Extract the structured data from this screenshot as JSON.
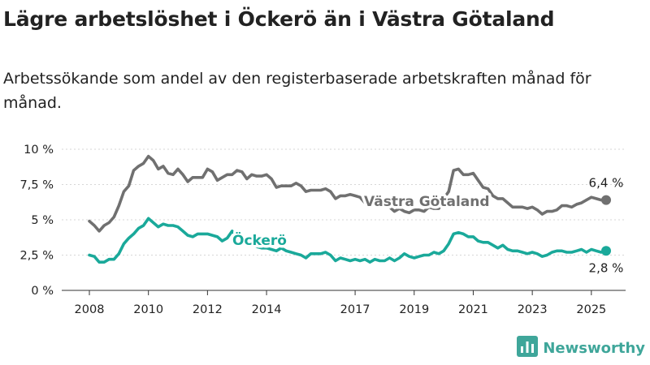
{
  "title": "Lägre arbetslöshet i Öckerö än i Västra Götaland",
  "subtitle": "Arbetssökande som andel av den registerbaserade arbetskraften månad för månad.",
  "brand": {
    "name": "Newsworthy",
    "color": "#3fa69a",
    "icon": "bar-chart-icon"
  },
  "chart_data": {
    "type": "line",
    "ylim": [
      0,
      10
    ],
    "y_ticks": [
      {
        "value": 10,
        "label": "10 %"
      },
      {
        "value": 7.5,
        "label": "7,5 %"
      },
      {
        "value": 5,
        "label": "5 %"
      },
      {
        "value": 2.5,
        "label": "2,5 %"
      },
      {
        "value": 0,
        "label": "0 %"
      }
    ],
    "xlim": [
      2007.6,
      2026.0
    ],
    "x_ticks": [
      "2008",
      "2010",
      "2012",
      "2014",
      "2017",
      "2019",
      "2021",
      "2023",
      "2025"
    ],
    "grid": "horizontal",
    "series": [
      {
        "name": "Västra Götaland",
        "color": "#707070",
        "end_label": "6,4 %",
        "points": [
          [
            "2008-01",
            4.9
          ],
          [
            "2008-03",
            4.6
          ],
          [
            "2008-05",
            4.2
          ],
          [
            "2008-07",
            4.6
          ],
          [
            "2008-09",
            4.8
          ],
          [
            "2008-11",
            5.2
          ],
          [
            "2009-01",
            6.0
          ],
          [
            "2009-03",
            7.0
          ],
          [
            "2009-05",
            7.4
          ],
          [
            "2009-07",
            8.5
          ],
          [
            "2009-09",
            8.8
          ],
          [
            "2009-11",
            9.0
          ],
          [
            "2010-01",
            9.5
          ],
          [
            "2010-03",
            9.2
          ],
          [
            "2010-05",
            8.6
          ],
          [
            "2010-07",
            8.8
          ],
          [
            "2010-09",
            8.3
          ],
          [
            "2010-11",
            8.2
          ],
          [
            "2011-01",
            8.6
          ],
          [
            "2011-03",
            8.2
          ],
          [
            "2011-05",
            7.7
          ],
          [
            "2011-07",
            8.0
          ],
          [
            "2011-09",
            8.0
          ],
          [
            "2011-11",
            8.0
          ],
          [
            "2012-01",
            8.6
          ],
          [
            "2012-03",
            8.4
          ],
          [
            "2012-05",
            7.8
          ],
          [
            "2012-07",
            8.0
          ],
          [
            "2012-09",
            8.2
          ],
          [
            "2012-11",
            8.2
          ],
          [
            "2013-01",
            8.5
          ],
          [
            "2013-03",
            8.4
          ],
          [
            "2013-05",
            7.9
          ],
          [
            "2013-07",
            8.2
          ],
          [
            "2013-09",
            8.1
          ],
          [
            "2013-11",
            8.1
          ],
          [
            "2014-01",
            8.2
          ],
          [
            "2014-03",
            7.9
          ],
          [
            "2014-05",
            7.3
          ],
          [
            "2014-07",
            7.4
          ],
          [
            "2014-09",
            7.4
          ],
          [
            "2014-11",
            7.4
          ],
          [
            "2015-01",
            7.6
          ],
          [
            "2015-03",
            7.4
          ],
          [
            "2015-05",
            7.0
          ],
          [
            "2015-07",
            7.1
          ],
          [
            "2015-09",
            7.1
          ],
          [
            "2015-11",
            7.1
          ],
          [
            "2016-01",
            7.2
          ],
          [
            "2016-03",
            7.0
          ],
          [
            "2016-05",
            6.5
          ],
          [
            "2016-07",
            6.7
          ],
          [
            "2016-09",
            6.7
          ],
          [
            "2016-11",
            6.8
          ],
          [
            "2017-01",
            6.7
          ],
          [
            "2017-03",
            6.6
          ],
          [
            "2017-05",
            6.2
          ],
          [
            "2017-07",
            6.3
          ],
          [
            "2017-09",
            6.0
          ],
          [
            "2017-11",
            5.9
          ],
          [
            "2018-01",
            6.0
          ],
          [
            "2018-03",
            5.9
          ],
          [
            "2018-05",
            5.6
          ],
          [
            "2018-07",
            5.8
          ],
          [
            "2018-09",
            5.6
          ],
          [
            "2018-11",
            5.5
          ],
          [
            "2019-01",
            5.7
          ],
          [
            "2019-03",
            5.7
          ],
          [
            "2019-05",
            5.6
          ],
          [
            "2019-07",
            5.9
          ],
          [
            "2019-09",
            5.8
          ],
          [
            "2019-11",
            5.8
          ],
          [
            "2020-01",
            6.5
          ],
          [
            "2020-03",
            7.0
          ],
          [
            "2020-05",
            8.5
          ],
          [
            "2020-07",
            8.6
          ],
          [
            "2020-09",
            8.2
          ],
          [
            "2020-11",
            8.2
          ],
          [
            "2021-01",
            8.3
          ],
          [
            "2021-03",
            7.8
          ],
          [
            "2021-05",
            7.3
          ],
          [
            "2021-07",
            7.2
          ],
          [
            "2021-09",
            6.7
          ],
          [
            "2021-11",
            6.5
          ],
          [
            "2022-01",
            6.5
          ],
          [
            "2022-03",
            6.2
          ],
          [
            "2022-05",
            5.9
          ],
          [
            "2022-07",
            5.9
          ],
          [
            "2022-09",
            5.9
          ],
          [
            "2022-11",
            5.8
          ],
          [
            "2023-01",
            5.9
          ],
          [
            "2023-03",
            5.7
          ],
          [
            "2023-05",
            5.4
          ],
          [
            "2023-07",
            5.6
          ],
          [
            "2023-09",
            5.6
          ],
          [
            "2023-11",
            5.7
          ],
          [
            "2024-01",
            6.0
          ],
          [
            "2024-03",
            6.0
          ],
          [
            "2024-05",
            5.9
          ],
          [
            "2024-07",
            6.1
          ],
          [
            "2024-09",
            6.2
          ],
          [
            "2024-11",
            6.4
          ],
          [
            "2025-01",
            6.6
          ],
          [
            "2025-03",
            6.5
          ],
          [
            "2025-05",
            6.4
          ],
          [
            "2025-07",
            6.4
          ]
        ]
      },
      {
        "name": "Öckerö",
        "color": "#1aa99a",
        "end_label": "2,8 %",
        "points": [
          [
            "2008-01",
            2.5
          ],
          [
            "2008-03",
            2.4
          ],
          [
            "2008-05",
            2.0
          ],
          [
            "2008-07",
            2.0
          ],
          [
            "2008-09",
            2.2
          ],
          [
            "2008-11",
            2.2
          ],
          [
            "2009-01",
            2.6
          ],
          [
            "2009-03",
            3.3
          ],
          [
            "2009-05",
            3.7
          ],
          [
            "2009-07",
            4.0
          ],
          [
            "2009-09",
            4.4
          ],
          [
            "2009-11",
            4.6
          ],
          [
            "2010-01",
            5.1
          ],
          [
            "2010-03",
            4.8
          ],
          [
            "2010-05",
            4.5
          ],
          [
            "2010-07",
            4.7
          ],
          [
            "2010-09",
            4.6
          ],
          [
            "2010-11",
            4.6
          ],
          [
            "2011-01",
            4.5
          ],
          [
            "2011-03",
            4.2
          ],
          [
            "2011-05",
            3.9
          ],
          [
            "2011-07",
            3.8
          ],
          [
            "2011-09",
            4.0
          ],
          [
            "2011-11",
            4.0
          ],
          [
            "2012-01",
            4.0
          ],
          [
            "2012-03",
            3.9
          ],
          [
            "2012-05",
            3.8
          ],
          [
            "2012-07",
            3.5
          ],
          [
            "2012-09",
            3.7
          ],
          [
            "2012-11",
            4.2
          ],
          [
            "2013-01",
            3.8
          ],
          [
            "2013-03",
            3.5
          ],
          [
            "2013-05",
            3.3
          ],
          [
            "2013-07",
            3.2
          ],
          [
            "2013-09",
            3.1
          ],
          [
            "2013-11",
            3.0
          ],
          [
            "2014-01",
            3.0
          ],
          [
            "2014-03",
            2.9
          ],
          [
            "2014-05",
            2.8
          ],
          [
            "2014-07",
            3.0
          ],
          [
            "2014-09",
            2.8
          ],
          [
            "2014-11",
            2.7
          ],
          [
            "2015-01",
            2.6
          ],
          [
            "2015-03",
            2.5
          ],
          [
            "2015-05",
            2.3
          ],
          [
            "2015-07",
            2.6
          ],
          [
            "2015-09",
            2.6
          ],
          [
            "2015-11",
            2.6
          ],
          [
            "2016-01",
            2.7
          ],
          [
            "2016-03",
            2.5
          ],
          [
            "2016-05",
            2.1
          ],
          [
            "2016-07",
            2.3
          ],
          [
            "2016-09",
            2.2
          ],
          [
            "2016-11",
            2.1
          ],
          [
            "2017-01",
            2.2
          ],
          [
            "2017-03",
            2.1
          ],
          [
            "2017-05",
            2.2
          ],
          [
            "2017-07",
            2.0
          ],
          [
            "2017-09",
            2.2
          ],
          [
            "2017-11",
            2.1
          ],
          [
            "2018-01",
            2.1
          ],
          [
            "2018-03",
            2.3
          ],
          [
            "2018-05",
            2.1
          ],
          [
            "2018-07",
            2.3
          ],
          [
            "2018-09",
            2.6
          ],
          [
            "2018-11",
            2.4
          ],
          [
            "2019-01",
            2.3
          ],
          [
            "2019-03",
            2.4
          ],
          [
            "2019-05",
            2.5
          ],
          [
            "2019-07",
            2.5
          ],
          [
            "2019-09",
            2.7
          ],
          [
            "2019-11",
            2.6
          ],
          [
            "2020-01",
            2.8
          ],
          [
            "2020-03",
            3.3
          ],
          [
            "2020-05",
            4.0
          ],
          [
            "2020-07",
            4.1
          ],
          [
            "2020-09",
            4.0
          ],
          [
            "2020-11",
            3.8
          ],
          [
            "2021-01",
            3.8
          ],
          [
            "2021-03",
            3.5
          ],
          [
            "2021-05",
            3.4
          ],
          [
            "2021-07",
            3.4
          ],
          [
            "2021-09",
            3.2
          ],
          [
            "2021-11",
            3.0
          ],
          [
            "2022-01",
            3.2
          ],
          [
            "2022-03",
            2.9
          ],
          [
            "2022-05",
            2.8
          ],
          [
            "2022-07",
            2.8
          ],
          [
            "2022-09",
            2.7
          ],
          [
            "2022-11",
            2.6
          ],
          [
            "2023-01",
            2.7
          ],
          [
            "2023-03",
            2.6
          ],
          [
            "2023-05",
            2.4
          ],
          [
            "2023-07",
            2.5
          ],
          [
            "2023-09",
            2.7
          ],
          [
            "2023-11",
            2.8
          ],
          [
            "2024-01",
            2.8
          ],
          [
            "2024-03",
            2.7
          ],
          [
            "2024-05",
            2.7
          ],
          [
            "2024-07",
            2.8
          ],
          [
            "2024-09",
            2.9
          ],
          [
            "2024-11",
            2.7
          ],
          [
            "2025-01",
            2.9
          ],
          [
            "2025-03",
            2.8
          ],
          [
            "2025-05",
            2.7
          ],
          [
            "2025-07",
            2.8
          ]
        ]
      }
    ]
  }
}
